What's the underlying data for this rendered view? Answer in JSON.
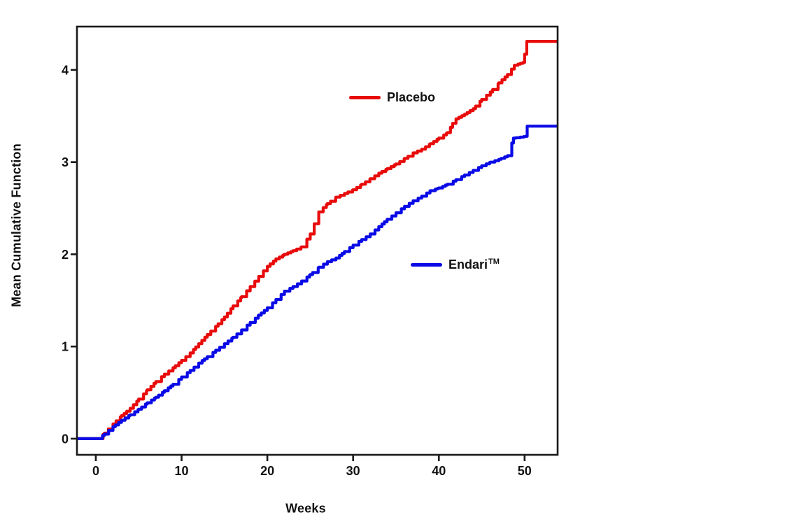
{
  "chart_data": {
    "type": "line",
    "subtype": "step",
    "title": "",
    "xlabel": "Weeks",
    "ylabel": "Mean Cumulative Function",
    "xlim": [
      -2.2,
      53.85
    ],
    "ylim": [
      -0.175,
      4.47
    ],
    "xticks": [
      0,
      10,
      20,
      30,
      40,
      50
    ],
    "yticks": [
      0,
      1,
      2,
      3,
      4
    ],
    "grid": false,
    "legend_position": "inside-plot",
    "axis_color": "#1a1a1a",
    "series": [
      {
        "name": "Placebo",
        "color": "#e80b0b",
        "points": [
          [
            -2.2,
            0
          ],
          [
            0.3,
            0
          ],
          [
            1,
            0.06
          ],
          [
            2,
            0.16
          ],
          [
            3,
            0.25
          ],
          [
            4,
            0.33
          ],
          [
            5,
            0.43
          ],
          [
            6,
            0.53
          ],
          [
            7,
            0.62
          ],
          [
            8,
            0.7
          ],
          [
            9,
            0.77
          ],
          [
            10,
            0.85
          ],
          [
            11,
            0.93
          ],
          [
            12,
            1.03
          ],
          [
            13,
            1.13
          ],
          [
            14,
            1.22
          ],
          [
            15,
            1.32
          ],
          [
            16,
            1.44
          ],
          [
            17,
            1.54
          ],
          [
            18,
            1.65
          ],
          [
            19,
            1.76
          ],
          [
            20,
            1.87
          ],
          [
            21,
            1.95
          ],
          [
            22,
            2.0
          ],
          [
            23,
            2.04
          ],
          [
            24,
            2.08
          ],
          [
            25,
            2.22
          ],
          [
            26,
            2.46
          ],
          [
            27,
            2.55
          ],
          [
            28,
            2.62
          ],
          [
            29,
            2.66
          ],
          [
            30,
            2.7
          ],
          [
            31,
            2.76
          ],
          [
            32,
            2.82
          ],
          [
            33,
            2.88
          ],
          [
            34,
            2.93
          ],
          [
            35,
            2.98
          ],
          [
            36,
            3.04
          ],
          [
            37,
            3.1
          ],
          [
            38,
            3.14
          ],
          [
            39,
            3.2
          ],
          [
            40,
            3.26
          ],
          [
            41,
            3.32
          ],
          [
            41.6,
            3.42
          ],
          [
            42,
            3.47
          ],
          [
            43,
            3.52
          ],
          [
            44,
            3.58
          ],
          [
            45,
            3.68
          ],
          [
            46,
            3.76
          ],
          [
            47,
            3.86
          ],
          [
            48,
            3.95
          ],
          [
            48.8,
            4.05
          ],
          [
            49.8,
            4.08
          ],
          [
            50.0,
            4.17
          ],
          [
            50.2,
            4.17
          ],
          [
            50.25,
            4.31
          ],
          [
            53.8,
            4.31
          ]
        ]
      },
      {
        "name": "Endari",
        "name_superscript": "TM",
        "color": "#0a0ae6",
        "points": [
          [
            -2.2,
            0
          ],
          [
            0.3,
            0
          ],
          [
            1,
            0.05
          ],
          [
            2,
            0.13
          ],
          [
            3,
            0.2
          ],
          [
            4,
            0.26
          ],
          [
            5,
            0.32
          ],
          [
            6,
            0.39
          ],
          [
            7,
            0.45
          ],
          [
            8,
            0.52
          ],
          [
            9,
            0.59
          ],
          [
            10,
            0.67
          ],
          [
            11,
            0.74
          ],
          [
            12,
            0.82
          ],
          [
            13,
            0.89
          ],
          [
            14,
            0.96
          ],
          [
            15,
            1.03
          ],
          [
            16,
            1.1
          ],
          [
            17,
            1.18
          ],
          [
            18,
            1.26
          ],
          [
            19,
            1.34
          ],
          [
            20,
            1.42
          ],
          [
            21,
            1.51
          ],
          [
            22,
            1.6
          ],
          [
            23,
            1.65
          ],
          [
            24,
            1.71
          ],
          [
            25,
            1.78
          ],
          [
            26,
            1.86
          ],
          [
            27,
            1.92
          ],
          [
            28,
            1.96
          ],
          [
            29,
            2.03
          ],
          [
            30,
            2.1
          ],
          [
            31,
            2.16
          ],
          [
            32,
            2.22
          ],
          [
            33,
            2.3
          ],
          [
            34,
            2.38
          ],
          [
            35,
            2.45
          ],
          [
            36,
            2.52
          ],
          [
            37,
            2.58
          ],
          [
            38,
            2.63
          ],
          [
            39,
            2.69
          ],
          [
            40,
            2.72
          ],
          [
            41,
            2.76
          ],
          [
            42,
            2.81
          ],
          [
            43,
            2.86
          ],
          [
            44,
            2.91
          ],
          [
            45,
            2.96
          ],
          [
            46,
            3.0
          ],
          [
            47,
            3.03
          ],
          [
            48,
            3.07
          ],
          [
            48.7,
            3.26
          ],
          [
            50.1,
            3.28
          ],
          [
            50.3,
            3.39
          ],
          [
            53.8,
            3.39
          ]
        ]
      }
    ]
  }
}
